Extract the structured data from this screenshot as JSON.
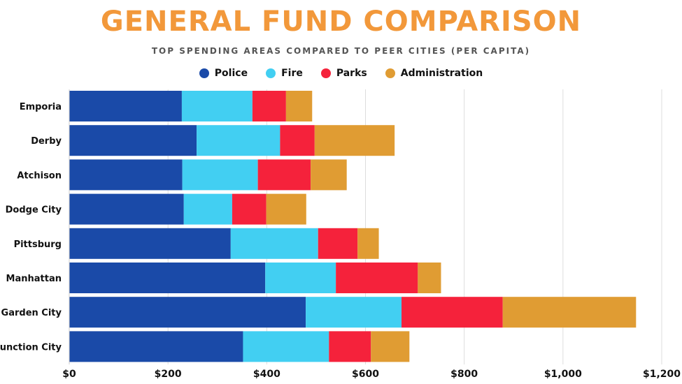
{
  "chart_data": {
    "type": "bar",
    "orientation": "horizontal",
    "stacked": true,
    "title": "GENERAL FUND COMPARISON",
    "subtitle": "TOP SPENDING AREAS COMPARED TO PEER CITIES (PER CAPITA)",
    "categories": [
      "Emporia",
      "Derby",
      "Atchison",
      "Dodge City",
      "Pittsburg",
      "Manhattan",
      "Garden City",
      "Junction City"
    ],
    "series": [
      {
        "name": "Police",
        "color": "#1a4aa8",
        "values": [
          228,
          258,
          229,
          232,
          327,
          397,
          479,
          352
        ]
      },
      {
        "name": "Fire",
        "color": "#42cff2",
        "values": [
          143,
          169,
          153,
          98,
          177,
          143,
          194,
          174
        ]
      },
      {
        "name": "Parks",
        "color": "#f5223b",
        "values": [
          68,
          70,
          107,
          69,
          80,
          166,
          205,
          85
        ]
      },
      {
        "name": "Administration",
        "color": "#e09c33",
        "values": [
          53,
          162,
          73,
          81,
          43,
          47,
          270,
          78
        ]
      }
    ],
    "xlim": [
      0,
      1200
    ],
    "xticks": [
      0,
      200,
      400,
      600,
      800,
      1000,
      1200
    ],
    "xtick_labels": [
      "$0",
      "$200",
      "$400",
      "$600",
      "$800",
      "$1,000",
      "$1,200"
    ],
    "grid": "vertical",
    "legend_position": "top-center"
  }
}
